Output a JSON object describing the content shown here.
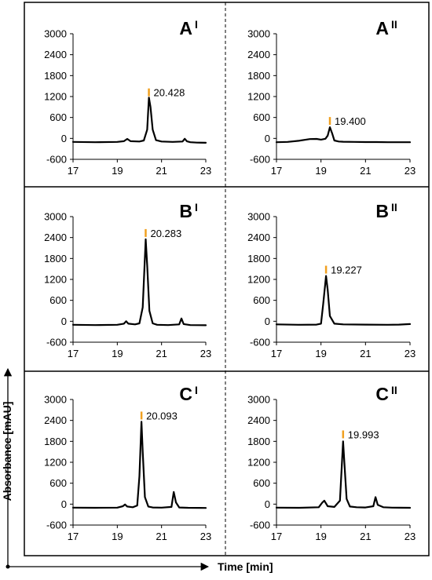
{
  "figure": {
    "x_axis_title": "Time [min]",
    "y_axis_title": "Absorbance [mAU]",
    "colors": {
      "trace": "#000000",
      "peak_marker": "#f0a020",
      "frame": "#000000"
    }
  },
  "chart_data": [
    {
      "type": "line",
      "panel": "A",
      "roman": "I",
      "x_ticks": [
        17,
        19,
        21,
        23
      ],
      "y_ticks": [
        -600,
        0,
        600,
        1200,
        1800,
        2400,
        3000
      ],
      "xlim": [
        17,
        23
      ],
      "ylim": [
        -600,
        3000
      ],
      "peak_label": "20.428",
      "peak_marker_x": 20.428,
      "peak_marker_y": 1320,
      "series": [
        {
          "x": [
            17,
            18,
            19,
            19.3,
            19.45,
            19.6,
            20,
            20.2,
            20.35,
            20.428,
            20.5,
            20.6,
            20.75,
            21,
            21.5,
            21.95,
            22.05,
            22.15,
            22.3,
            22.6,
            23
          ],
          "y": [
            -100,
            -110,
            -100,
            -80,
            -15,
            -80,
            -90,
            -60,
            250,
            1170,
            900,
            250,
            -50,
            -90,
            -100,
            -90,
            -10,
            -85,
            -110,
            -120,
            -125
          ]
        }
      ]
    },
    {
      "type": "line",
      "panel": "A",
      "roman": "II",
      "x_ticks": [
        17,
        19,
        21,
        23
      ],
      "y_ticks": [
        -600,
        0,
        600,
        1200,
        1800,
        2400,
        3000
      ],
      "xlim": [
        17,
        23
      ],
      "ylim": [
        -600,
        3000
      ],
      "peak_label": "19.400",
      "peak_marker_x": 19.4,
      "peak_marker_y": 500,
      "series": [
        {
          "x": [
            17,
            17.5,
            18,
            18.5,
            18.8,
            19,
            19.2,
            19.3,
            19.4,
            19.5,
            19.6,
            19.8,
            20,
            20.5,
            21,
            21.5,
            22,
            22.5,
            23
          ],
          "y": [
            -110,
            -100,
            -70,
            -20,
            -15,
            -35,
            -10,
            80,
            320,
            150,
            -60,
            -90,
            -95,
            -100,
            -105,
            -105,
            -110,
            -110,
            -110
          ]
        }
      ]
    },
    {
      "type": "line",
      "panel": "B",
      "roman": "I",
      "x_ticks": [
        17,
        19,
        21,
        23
      ],
      "y_ticks": [
        -600,
        0,
        600,
        1200,
        1800,
        2400,
        3000
      ],
      "xlim": [
        17,
        23
      ],
      "ylim": [
        -600,
        3000
      ],
      "peak_label": "20.283",
      "peak_marker_x": 20.283,
      "peak_marker_y": 2530,
      "series": [
        {
          "x": [
            17,
            18,
            19,
            19.3,
            19.4,
            19.5,
            19.8,
            20,
            20.15,
            20.283,
            20.35,
            20.45,
            20.6,
            20.8,
            21.3,
            21.8,
            21.9,
            22,
            22.3,
            23
          ],
          "y": [
            -100,
            -110,
            -100,
            -70,
            0,
            -70,
            -90,
            -60,
            400,
            2350,
            1600,
            300,
            -60,
            -100,
            -110,
            -90,
            80,
            -80,
            -110,
            -115
          ]
        }
      ]
    },
    {
      "type": "line",
      "panel": "B",
      "roman": "II",
      "x_ticks": [
        17,
        19,
        21,
        23
      ],
      "y_ticks": [
        -600,
        0,
        600,
        1200,
        1800,
        2400,
        3000
      ],
      "xlim": [
        17,
        23
      ],
      "ylim": [
        -600,
        3000
      ],
      "peak_label": "19.227",
      "peak_marker_x": 19.227,
      "peak_marker_y": 1480,
      "series": [
        {
          "x": [
            17,
            18,
            18.8,
            19,
            19.1,
            19.227,
            19.3,
            19.4,
            19.6,
            20,
            21,
            22,
            22.5,
            23
          ],
          "y": [
            -90,
            -100,
            -95,
            -70,
            500,
            1300,
            900,
            150,
            -70,
            -90,
            -95,
            -100,
            -95,
            -80
          ]
        }
      ]
    },
    {
      "type": "line",
      "panel": "C",
      "roman": "I",
      "x_ticks": [
        17,
        19,
        21,
        23
      ],
      "y_ticks": [
        -600,
        0,
        600,
        1200,
        1800,
        2400,
        3000
      ],
      "xlim": [
        17,
        23
      ],
      "ylim": [
        -600,
        3000
      ],
      "peak_label": "20.093",
      "peak_marker_x": 20.093,
      "peak_marker_y": 2540,
      "series": [
        {
          "x": [
            17,
            18,
            19,
            19.25,
            19.35,
            19.45,
            19.7,
            19.9,
            20.0,
            20.093,
            20.15,
            20.25,
            20.4,
            20.6,
            21,
            21.45,
            21.55,
            21.65,
            21.8,
            22.2,
            23
          ],
          "y": [
            -100,
            -105,
            -100,
            -60,
            -10,
            -70,
            -90,
            -40,
            800,
            2360,
            1500,
            200,
            -70,
            -95,
            -100,
            -80,
            350,
            50,
            -95,
            -105,
            -110
          ]
        }
      ]
    },
    {
      "type": "line",
      "panel": "C",
      "roman": "II",
      "x_ticks": [
        17,
        19,
        21,
        23
      ],
      "y_ticks": [
        -600,
        0,
        600,
        1200,
        1800,
        2400,
        3000
      ],
      "xlim": [
        17,
        23
      ],
      "ylim": [
        -600,
        3000
      ],
      "peak_label": "19.993",
      "peak_marker_x": 19.993,
      "peak_marker_y": 2000,
      "series": [
        {
          "x": [
            17,
            18,
            18.9,
            19.05,
            19.15,
            19.3,
            19.6,
            19.85,
            19.993,
            20.05,
            20.15,
            20.3,
            20.6,
            21,
            21.35,
            21.45,
            21.55,
            21.8,
            22.2,
            23
          ],
          "y": [
            -100,
            -105,
            -90,
            40,
            100,
            -60,
            -80,
            100,
            1800,
            1200,
            150,
            -70,
            -90,
            -95,
            -60,
            200,
            -20,
            -90,
            -100,
            -105
          ]
        }
      ]
    }
  ]
}
